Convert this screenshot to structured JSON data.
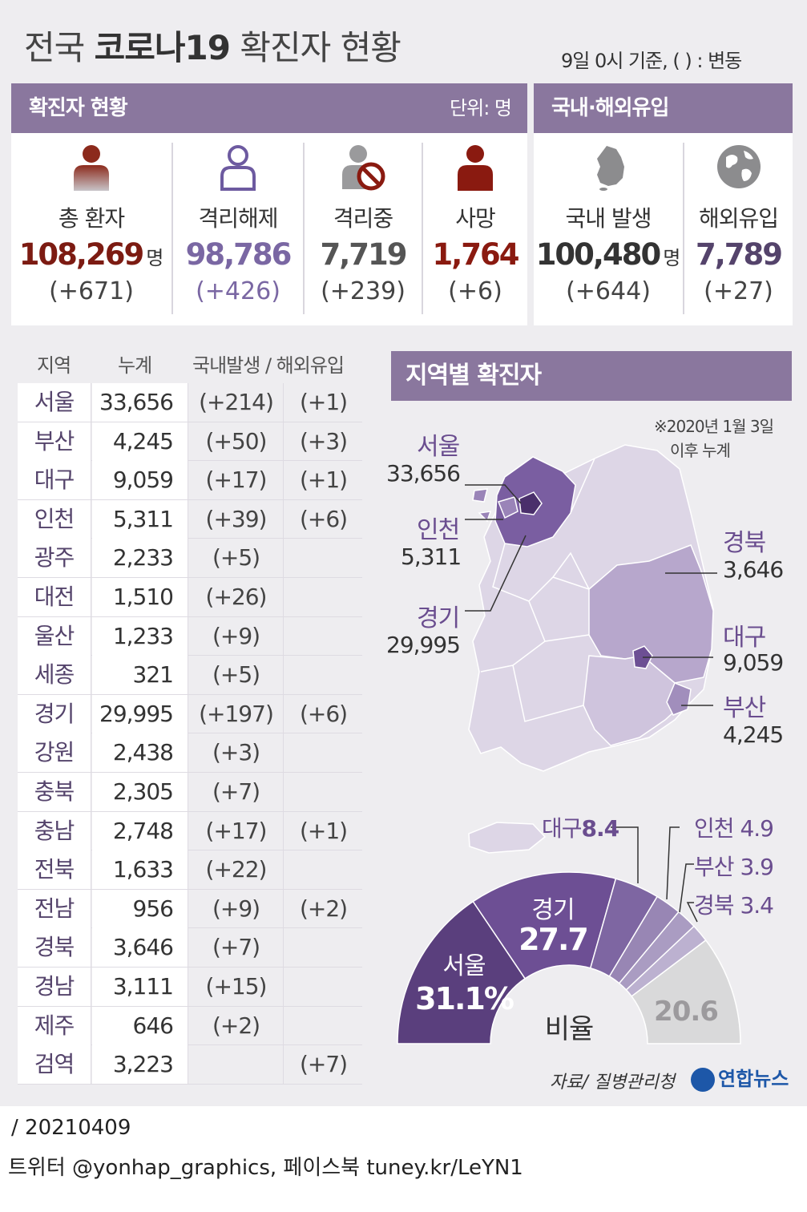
{
  "header": {
    "title_prefix": "전국",
    "title_bold": "코로나19",
    "title_suffix": "확진자 현황",
    "basis": "9일  0시 기준, ( ) : 변동"
  },
  "status_panel": {
    "title": "확진자 현황",
    "unit": "단위: 명",
    "items": [
      {
        "label": "총 환자",
        "value": "108,269",
        "suffix": "명",
        "change": "(+671)",
        "icon": "person-icon"
      },
      {
        "label": "격리해제",
        "value": "98,786",
        "suffix": "",
        "change": "(+426)",
        "icon": "person-outline-icon"
      },
      {
        "label": "격리중",
        "value": "7,719",
        "suffix": "",
        "change": "(+239)",
        "icon": "person-prohibited-icon"
      },
      {
        "label": "사망",
        "value": "1,764",
        "suffix": "",
        "change": "(+6)",
        "icon": "person-dark-red-icon"
      }
    ]
  },
  "origin_panel": {
    "title": "국내·해외유입",
    "items": [
      {
        "label": "국내 발생",
        "value": "100,480",
        "suffix": "명",
        "change": "(+644)",
        "icon": "korea-map-icon"
      },
      {
        "label": "해외유입",
        "value": "7,789",
        "suffix": "",
        "change": "(+27)",
        "icon": "globe-icon"
      }
    ]
  },
  "colors": {
    "purple_header": "#8a779e",
    "total": "#7c1b12",
    "released": "#7a67a3",
    "isolated": "#555555",
    "deaths": "#8a1a10",
    "domestic": "#333333",
    "overseas": "#54436b"
  },
  "region_table": {
    "headers": {
      "region": "지역",
      "total": "누계",
      "domestic_overseas": "국내발생 / 해외유입"
    },
    "rows": [
      {
        "region": "서울",
        "total": "33,656",
        "domestic": "(+214)",
        "overseas": "(+1)"
      },
      {
        "region": "부산",
        "total": "4,245",
        "domestic": "(+50)",
        "overseas": "(+3)"
      },
      {
        "region": "대구",
        "total": "9,059",
        "domestic": "(+17)",
        "overseas": "(+1)"
      },
      {
        "region": "인천",
        "total": "5,311",
        "domestic": "(+39)",
        "overseas": "(+6)"
      },
      {
        "region": "광주",
        "total": "2,233",
        "domestic": "(+5)",
        "overseas": ""
      },
      {
        "region": "대전",
        "total": "1,510",
        "domestic": "(+26)",
        "overseas": ""
      },
      {
        "region": "울산",
        "total": "1,233",
        "domestic": "(+9)",
        "overseas": ""
      },
      {
        "region": "세종",
        "total": "321",
        "domestic": "(+5)",
        "overseas": ""
      },
      {
        "region": "경기",
        "total": "29,995",
        "domestic": "(+197)",
        "overseas": "(+6)"
      },
      {
        "region": "강원",
        "total": "2,438",
        "domestic": "(+3)",
        "overseas": ""
      },
      {
        "region": "충북",
        "total": "2,305",
        "domestic": "(+7)",
        "overseas": ""
      },
      {
        "region": "충남",
        "total": "2,748",
        "domestic": "(+17)",
        "overseas": "(+1)"
      },
      {
        "region": "전북",
        "total": "1,633",
        "domestic": "(+22)",
        "overseas": ""
      },
      {
        "region": "전남",
        "total": "956",
        "domestic": "(+9)",
        "overseas": "(+2)"
      },
      {
        "region": "경북",
        "total": "3,646",
        "domestic": "(+7)",
        "overseas": ""
      },
      {
        "region": "경남",
        "total": "3,111",
        "domestic": "(+15)",
        "overseas": ""
      },
      {
        "region": "제주",
        "total": "646",
        "domestic": "(+2)",
        "overseas": ""
      },
      {
        "region": "검역",
        "total": "3,223",
        "domestic": "",
        "overseas": "(+7)"
      }
    ]
  },
  "map": {
    "title": "지역별 확진자",
    "note_line1": "※2020년 1월 3일",
    "note_line2": "이후 누계",
    "labels": [
      {
        "name": "서울",
        "value": "33,656"
      },
      {
        "name": "인천",
        "value": "5,311"
      },
      {
        "name": "경기",
        "value": "29,995"
      },
      {
        "name": "경북",
        "value": "3,646"
      },
      {
        "name": "대구",
        "value": "9,059"
      },
      {
        "name": "부산",
        "value": "4,245"
      }
    ]
  },
  "chart_data": {
    "type": "pie",
    "variant": "half-donut",
    "center_label": "비율",
    "unit": "%",
    "slices": [
      {
        "name": "서울",
        "value": 31.1,
        "label": "31.1%",
        "color": "#5a3f7d"
      },
      {
        "name": "경기",
        "value": 27.7,
        "label": "27.7",
        "color": "#6d4f94"
      },
      {
        "name": "대구",
        "value": 8.4,
        "label": "8.4",
        "color": "#7e66a2"
      },
      {
        "name": "인천",
        "value": 4.9,
        "label": "4.9",
        "color": "#9886b4"
      },
      {
        "name": "부산",
        "value": 3.9,
        "label": "3.9",
        "color": "#aa9cc2"
      },
      {
        "name": "경북",
        "value": 3.4,
        "label": "3.4",
        "color": "#bcb1d0"
      },
      {
        "name": "",
        "value": 20.6,
        "label": "20.6",
        "color": "#d9d9da"
      }
    ]
  },
  "footer": {
    "source": "자료/ 질병관리청",
    "logo": "연합뉴스",
    "date": "/ 20210409",
    "social": "트위터 @yonhap_graphics, 페이스북 tuney.kr/LeYN1"
  }
}
